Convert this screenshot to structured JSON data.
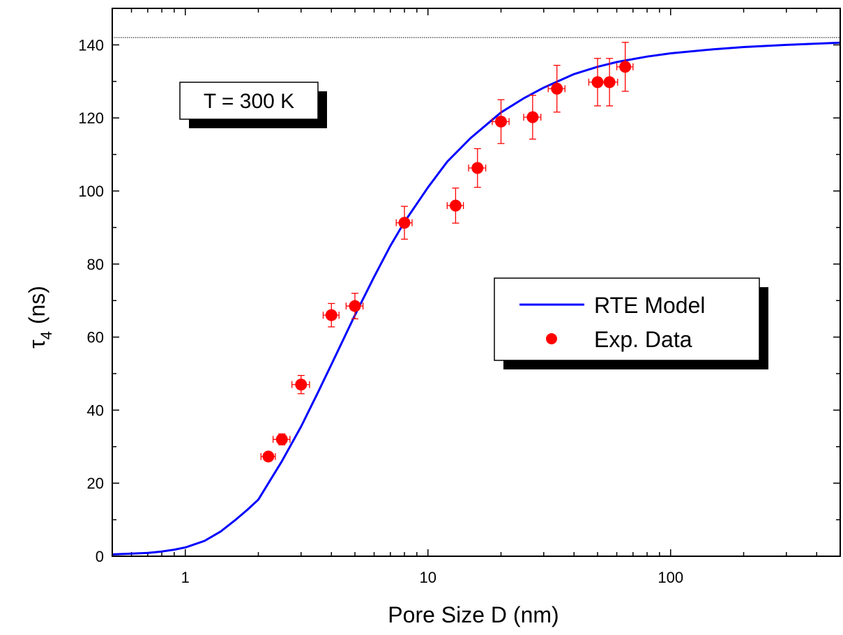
{
  "chart_data": {
    "type": "scatter",
    "title": "",
    "xlabel": "Pore Size D (nm)",
    "ylabel_symbol": "τ",
    "ylabel_subscript": "4",
    "ylabel_unit": "(ns)",
    "x_scale": "log",
    "xlim": [
      0.5,
      500
    ],
    "ylim": [
      0,
      150
    ],
    "x_ticks": [
      1,
      10,
      100
    ],
    "x_tick_labels": [
      "1",
      "10",
      "100"
    ],
    "y_ticks": [
      0,
      20,
      40,
      60,
      80,
      100,
      120,
      140
    ],
    "y_tick_labels": [
      "0",
      "20",
      "40",
      "60",
      "80",
      "100",
      "120",
      "140"
    ],
    "reference_line_y": 142,
    "annotation": "T = 300 K",
    "legend_placement": "center-right",
    "grid": false,
    "series": [
      {
        "name": "RTE Model",
        "kind": "line",
        "color": "#0000ff",
        "x": [
          0.5,
          0.6,
          0.7,
          0.8,
          0.9,
          1.0,
          1.2,
          1.4,
          1.6,
          1.8,
          2.0,
          2.5,
          3.0,
          3.5,
          4.0,
          5.0,
          6.0,
          7.0,
          8.0,
          10,
          12,
          15,
          20,
          25,
          30,
          40,
          50,
          60,
          80,
          100,
          150,
          200,
          300,
          500
        ],
        "y": [
          0.5,
          0.7,
          0.9,
          1.3,
          1.8,
          2.4,
          4.2,
          6.8,
          9.8,
          12.7,
          15.5,
          26.0,
          35.5,
          44.5,
          52.5,
          66.0,
          76.5,
          85.0,
          91.5,
          101.0,
          108.0,
          114.5,
          121.5,
          125.5,
          128.3,
          132.0,
          134.0,
          135.3,
          136.8,
          137.7,
          138.8,
          139.4,
          140.0,
          140.6
        ]
      },
      {
        "name": "Exp. Data",
        "kind": "scatter",
        "color": "#ff0000",
        "points": [
          {
            "x": 2.2,
            "y": 27.3,
            "xerr": 0.15,
            "yerr": 1.0
          },
          {
            "x": 2.5,
            "y": 32.0,
            "xerr": 0.2,
            "yerr": 1.5
          },
          {
            "x": 3.0,
            "y": 47.0,
            "xerr": 0.25,
            "yerr": 2.5
          },
          {
            "x": 4.0,
            "y": 66.0,
            "xerr": 0.3,
            "yerr": 3.2
          },
          {
            "x": 5.0,
            "y": 68.5,
            "xerr": 0.4,
            "yerr": 3.5
          },
          {
            "x": 8.0,
            "y": 91.3,
            "xerr": 0.6,
            "yerr": 4.5
          },
          {
            "x": 13.0,
            "y": 96.0,
            "xerr": 1.0,
            "yerr": 4.8
          },
          {
            "x": 16.0,
            "y": 106.3,
            "xerr": 1.3,
            "yerr": 5.3
          },
          {
            "x": 20.0,
            "y": 119.0,
            "xerr": 1.6,
            "yerr": 6.0
          },
          {
            "x": 27.0,
            "y": 120.2,
            "xerr": 2.2,
            "yerr": 6.0
          },
          {
            "x": 34.0,
            "y": 128.0,
            "xerr": 2.7,
            "yerr": 6.4
          },
          {
            "x": 50.0,
            "y": 129.8,
            "xerr": 4.0,
            "yerr": 6.5
          },
          {
            "x": 56.0,
            "y": 129.8,
            "xerr": 4.5,
            "yerr": 6.5
          },
          {
            "x": 65.0,
            "y": 134.0,
            "xerr": 5.0,
            "yerr": 6.7
          }
        ]
      }
    ]
  }
}
